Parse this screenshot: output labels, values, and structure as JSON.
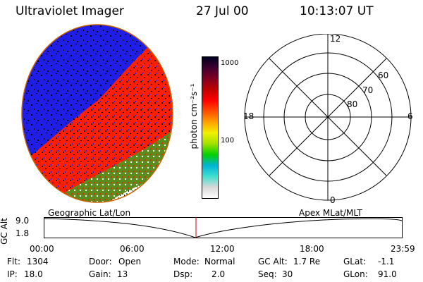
{
  "header": {
    "instrument": "Ultraviolet Imager",
    "date": "27 Jul 00",
    "time": "10:13:07 UT"
  },
  "colorbar": {
    "unit_label": "photon cm⁻²s⁻¹",
    "ticks": [
      "1000",
      "100"
    ],
    "colors": [
      "#ffffff",
      "#d8d8d8",
      "#40e0d0",
      "#00b4d8",
      "#00d000",
      "#a0e000",
      "#f0f000",
      "#ffa000",
      "#ff5000",
      "#ff0000",
      "#c00000",
      "#800020",
      "#400030",
      "#000020"
    ]
  },
  "polar_plot": {
    "mlt_labels": {
      "top": "12",
      "left": "18",
      "right": "6",
      "bottom": "0"
    },
    "lat_labels": [
      "60",
      "70",
      "80"
    ]
  },
  "timeline": {
    "axis_title": "GC Alt",
    "y_ticks": [
      "9.0",
      "1.8"
    ],
    "left_label": "Geographic Lat/Lon",
    "right_label": "Apex MLat/MLT",
    "x_ticks": [
      "00:00",
      "06:00",
      "12:00",
      "18:00",
      "23:59"
    ]
  },
  "info": {
    "row1": [
      {
        "key": "Flt:",
        "value": "1304"
      },
      {
        "key": "Door:",
        "value": "Open"
      },
      {
        "key": "Mode:",
        "value": "Normal"
      },
      {
        "key": "GC Alt:",
        "value": "1.7 Re"
      },
      {
        "key": "GLat:",
        "value": "-1.1"
      }
    ],
    "row2": [
      {
        "key": "IP:",
        "value": "18.0"
      },
      {
        "key": "Gain:",
        "value": "13"
      },
      {
        "key": "Dsp:",
        "value": "2.0"
      },
      {
        "key": "Seq:",
        "value": "30"
      },
      {
        "key": "GLon:",
        "value": "91.0"
      }
    ]
  },
  "colors": {
    "disk_blue": "#1e1ee6",
    "disk_red": "#ff1e00",
    "disk_green": "#5a8c1e",
    "disk_black": "#000000",
    "marker": "#c00000"
  }
}
